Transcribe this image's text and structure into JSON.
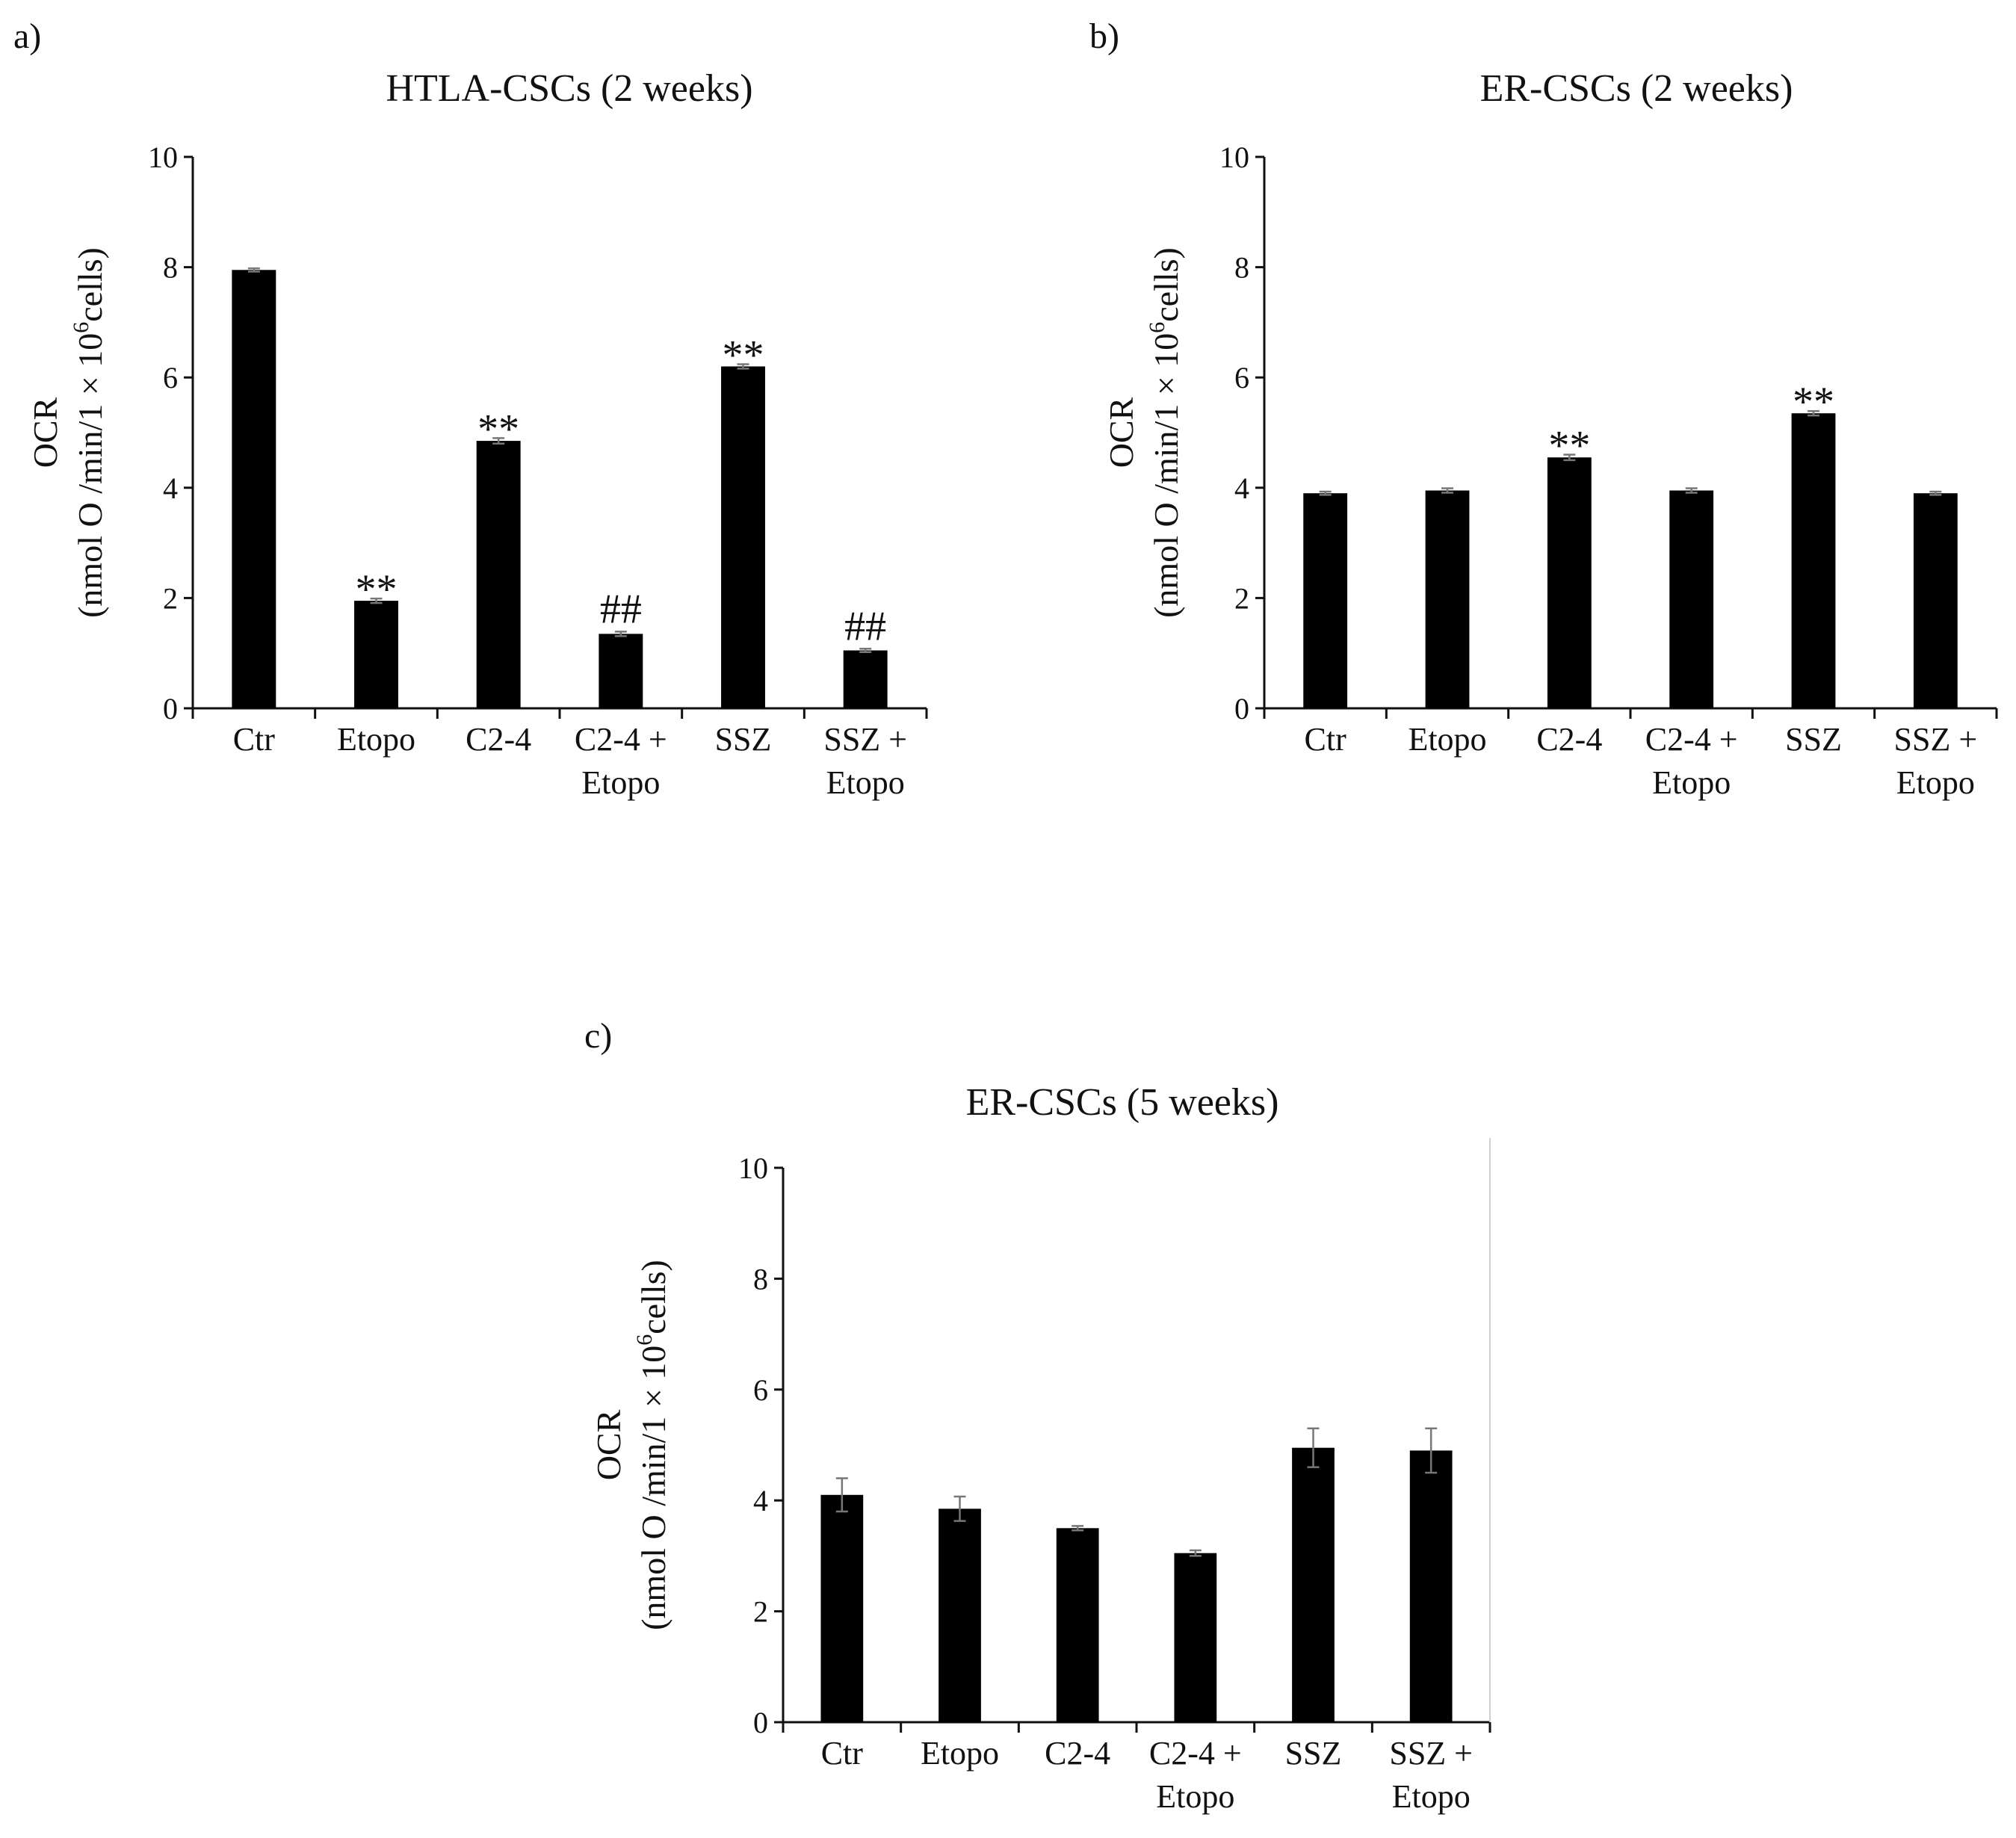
{
  "figure": {
    "panels": [
      "a)",
      "b)",
      "c)"
    ]
  },
  "chart_data": [
    {
      "type": "bar",
      "panel": "a)",
      "title": "HTLA-CSCs (2 weeks)",
      "xlabel": "",
      "ylabel_line1": "OCR",
      "ylabel_line2_pre": "(nmol O /min/1 × 10",
      "ylabel_sup": "6",
      "ylabel_line2_post": "cells)",
      "ylim": [
        0,
        10
      ],
      "yticks": [
        "0",
        "2",
        "4",
        "6",
        "8",
        "10"
      ],
      "categories": [
        [
          "Ctr"
        ],
        [
          "Etopo"
        ],
        [
          "C2-4"
        ],
        [
          "C2-4 +",
          "Etopo"
        ],
        [
          "SSZ"
        ],
        [
          "SSZ +",
          "Etopo"
        ]
      ],
      "values": [
        7.95,
        1.95,
        4.85,
        1.35,
        6.2,
        1.05
      ],
      "errors": [
        0.03,
        0.04,
        0.05,
        0.04,
        0.04,
        0.03
      ],
      "annotations": [
        "",
        "**",
        "**",
        "##",
        "**",
        "##"
      ],
      "color": "#000000"
    },
    {
      "type": "bar",
      "panel": "b)",
      "title": "ER-CSCs (2 weeks)",
      "xlabel": "",
      "ylabel_line1": "OCR",
      "ylabel_line2_pre": "(nmol O /min/1 × 10",
      "ylabel_sup": "6",
      "ylabel_line2_post": "cells)",
      "ylim": [
        0,
        10
      ],
      "yticks": [
        "0",
        "2",
        "4",
        "6",
        "8",
        "10"
      ],
      "categories": [
        [
          "Ctr"
        ],
        [
          "Etopo"
        ],
        [
          "C2-4"
        ],
        [
          "C2-4 +",
          "Etopo"
        ],
        [
          "SSZ"
        ],
        [
          "SSZ +",
          "Etopo"
        ]
      ],
      "values": [
        3.9,
        3.95,
        4.55,
        3.95,
        5.35,
        3.9
      ],
      "errors": [
        0.03,
        0.04,
        0.05,
        0.04,
        0.04,
        0.03
      ],
      "annotations": [
        "",
        "",
        "**",
        "",
        "**",
        ""
      ],
      "color": "#000000"
    },
    {
      "type": "bar",
      "panel": "c)",
      "title": "ER-CSCs (5 weeks)",
      "xlabel": "",
      "ylabel_line1": "OCR",
      "ylabel_line2_pre": "(nmol O /min/1 × 10",
      "ylabel_sup": "6",
      "ylabel_line2_post": "cells)",
      "ylim": [
        0,
        10
      ],
      "yticks": [
        "0",
        "2",
        "4",
        "6",
        "8",
        "10"
      ],
      "categories": [
        [
          "Ctr"
        ],
        [
          "Etopo"
        ],
        [
          "C2-4"
        ],
        [
          "C2-4 +",
          "Etopo"
        ],
        [
          "SSZ"
        ],
        [
          "SSZ +",
          "Etopo"
        ]
      ],
      "values": [
        4.1,
        3.85,
        3.5,
        3.05,
        4.95,
        4.9
      ],
      "errors": [
        0.3,
        0.22,
        0.04,
        0.05,
        0.35,
        0.4
      ],
      "annotations": [
        "",
        "",
        "",
        "",
        "",
        ""
      ],
      "color": "#000000"
    }
  ]
}
